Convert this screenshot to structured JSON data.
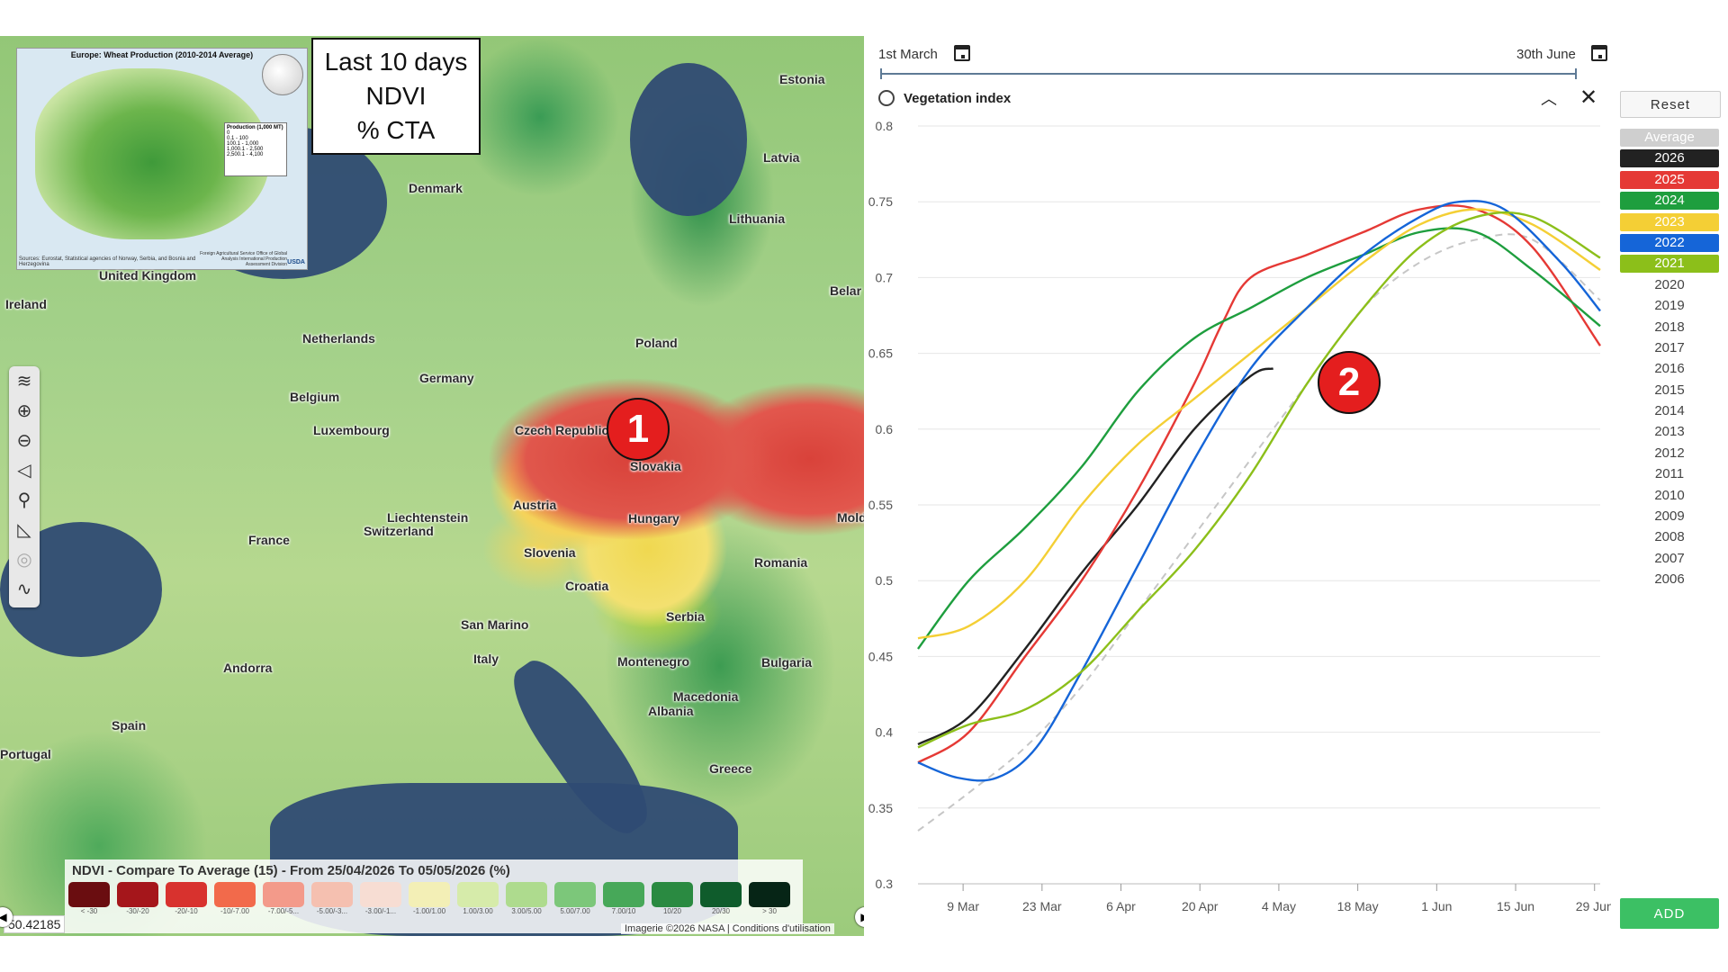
{
  "map": {
    "inset": {
      "title": "Europe: Wheat Production (2010-2014 Average)",
      "legend_title": "Production (1,000 MT)",
      "legend_items": [
        "0",
        "0.1 - 100",
        "100.1 - 1,000",
        "1,000.1 - 2,500",
        "2,500.1 - 4,100"
      ],
      "source": "Sources: Eurostat, Statistical agencies of Norway, Serbia, and Bosnia and Herzegovina",
      "credit": "Foreign Agricultural Service Office of Global Analysis International Production Assessment Division",
      "credit_logo": "USDA"
    },
    "label_box": {
      "line1": "Last 10 days",
      "line2": "NDVI",
      "line3": "% CTA"
    },
    "country_labels": [
      "Estonia",
      "Latvia",
      "Lithuania",
      "Denmark",
      "United Kingdom",
      "Ireland",
      "Netherlands",
      "Belgium",
      "Germany",
      "Poland",
      "Luxembourg",
      "Czech Republic",
      "Slovakia",
      "Austria",
      "Hungary",
      "Liechtenstein",
      "Switzerland",
      "France",
      "Slovenia",
      "Croatia",
      "San Marino",
      "Serbia",
      "Romania",
      "Bulgaria",
      "Montenegro",
      "Macedonia",
      "Albania",
      "Italy",
      "Andorra",
      "Spain",
      "Portugal",
      "Greece",
      "Belar",
      "Mold"
    ],
    "markers": [
      "1",
      "2"
    ],
    "legend": {
      "title": "NDVI - Compare To Average (15) - From 25/04/2026 To 05/05/2026 (%)",
      "swatches": [
        {
          "label": "< -30",
          "color": "#6a0d10"
        },
        {
          "label": "-30/-20",
          "color": "#a5161b"
        },
        {
          "label": "-20/-10",
          "color": "#d8322e"
        },
        {
          "label": "-10/-7.00",
          "color": "#f26a4b"
        },
        {
          "label": "-7.00/-5...",
          "color": "#f39a8a"
        },
        {
          "label": "-5.00/-3...",
          "color": "#f5c0b0"
        },
        {
          "label": "-3.00/-1...",
          "color": "#f7ddd3"
        },
        {
          "label": "-1.00/1.00",
          "color": "#f3efb6"
        },
        {
          "label": "1.00/3.00",
          "color": "#d6ebaa"
        },
        {
          "label": "3.00/5.00",
          "color": "#aedb8e"
        },
        {
          "label": "5.00/7.00",
          "color": "#7cc77a"
        },
        {
          "label": "7.00/10",
          "color": "#47a859"
        },
        {
          "label": "10/20",
          "color": "#2a8a41"
        },
        {
          "label": "20/30",
          "color": "#0f5c2c"
        },
        {
          "label": "> 30",
          "color": "#062516"
        }
      ]
    },
    "coordinates": "50.42185",
    "attribution": "Imagerie ©2026 NASA | Conditions d'utilisation",
    "tools": [
      "layers-icon",
      "zoom-in-icon",
      "zoom-out-icon",
      "navigate-icon",
      "search-icon",
      "measure-icon",
      "target-icon",
      "draw-icon"
    ]
  },
  "panel": {
    "date_start": "1st March",
    "date_end": "30th June",
    "title": "Vegetation index",
    "reset_label": "Reset",
    "add_label": "ADD",
    "years": [
      {
        "label": "Average",
        "color": "#cfcfcf",
        "active": true
      },
      {
        "label": "2026",
        "color": "#222222",
        "active": true
      },
      {
        "label": "2025",
        "color": "#e53935",
        "active": true
      },
      {
        "label": "2024",
        "color": "#1e9e3e",
        "active": true
      },
      {
        "label": "2023",
        "color": "#f4cf35",
        "active": true
      },
      {
        "label": "2022",
        "color": "#1565d8",
        "active": true
      },
      {
        "label": "2021",
        "color": "#8cbf1a",
        "active": true
      },
      {
        "label": "2020",
        "active": false
      },
      {
        "label": "2019",
        "active": false
      },
      {
        "label": "2018",
        "active": false
      },
      {
        "label": "2017",
        "active": false
      },
      {
        "label": "2016",
        "active": false
      },
      {
        "label": "2015",
        "active": false
      },
      {
        "label": "2014",
        "active": false
      },
      {
        "label": "2013",
        "active": false
      },
      {
        "label": "2012",
        "active": false
      },
      {
        "label": "2011",
        "active": false
      },
      {
        "label": "2010",
        "active": false
      },
      {
        "label": "2009",
        "active": false
      },
      {
        "label": "2008",
        "active": false
      },
      {
        "label": "2007",
        "active": false
      },
      {
        "label": "2006",
        "active": false
      }
    ]
  },
  "chart_data": {
    "type": "line",
    "title": "Vegetation index",
    "ylim": [
      0.3,
      0.8
    ],
    "yticks": [
      0.3,
      0.35,
      0.4,
      0.45,
      0.5,
      0.55,
      0.6,
      0.65,
      0.7,
      0.75,
      0.8
    ],
    "ytick_labels": [
      "0.3",
      "0.35",
      "0.4",
      "0.45",
      "0.5",
      "0.55",
      "0.6",
      "0.65",
      "0.7",
      "0.75",
      "0.8"
    ],
    "xlim": [
      1,
      122
    ],
    "xticks": [
      9,
      23,
      37,
      51,
      65,
      79,
      93,
      107,
      121
    ],
    "xtick_labels": [
      "9 Mar",
      "23 Mar",
      "6 Apr",
      "20 Apr",
      "4 May",
      "18 May",
      "1 Jun",
      "15 Jun",
      "29 Jun"
    ],
    "grid": "horizontal",
    "series": [
      {
        "name": "Average",
        "color": "#c6c6c6",
        "dashed": true,
        "x": [
          1,
          10,
          20,
          30,
          40,
          50,
          60,
          70,
          80,
          90,
          100,
          110,
          122
        ],
        "y": [
          0.335,
          0.36,
          0.39,
          0.43,
          0.48,
          0.53,
          0.58,
          0.63,
          0.68,
          0.71,
          0.725,
          0.725,
          0.685
        ]
      },
      {
        "name": "2026",
        "color": "#222222",
        "x": [
          1,
          10,
          20,
          30,
          40,
          50,
          60,
          64
        ],
        "y": [
          0.392,
          0.41,
          0.455,
          0.505,
          0.55,
          0.6,
          0.635,
          0.64
        ]
      },
      {
        "name": "2025",
        "color": "#e53935",
        "x": [
          1,
          10,
          20,
          30,
          40,
          50,
          55,
          60,
          70,
          80,
          90,
          100,
          110,
          122
        ],
        "y": [
          0.38,
          0.4,
          0.45,
          0.5,
          0.56,
          0.63,
          0.67,
          0.7,
          0.715,
          0.73,
          0.745,
          0.745,
          0.72,
          0.655
        ]
      },
      {
        "name": "2024",
        "color": "#1e9e3e",
        "x": [
          1,
          10,
          20,
          30,
          40,
          50,
          60,
          70,
          80,
          90,
          100,
          110,
          122
        ],
        "y": [
          0.455,
          0.5,
          0.535,
          0.575,
          0.625,
          0.66,
          0.68,
          0.7,
          0.715,
          0.73,
          0.73,
          0.705,
          0.668
        ]
      },
      {
        "name": "2023",
        "color": "#f4cf35",
        "x": [
          1,
          10,
          20,
          30,
          40,
          50,
          60,
          70,
          80,
          90,
          100,
          110,
          122
        ],
        "y": [
          0.462,
          0.47,
          0.5,
          0.55,
          0.59,
          0.62,
          0.65,
          0.68,
          0.71,
          0.735,
          0.745,
          0.735,
          0.705
        ]
      },
      {
        "name": "2022",
        "color": "#1565d8",
        "x": [
          1,
          8,
          15,
          22,
          30,
          40,
          50,
          60,
          70,
          80,
          90,
          97,
          105,
          115,
          122
        ],
        "y": [
          0.38,
          0.37,
          0.37,
          0.39,
          0.44,
          0.51,
          0.58,
          0.64,
          0.68,
          0.715,
          0.74,
          0.75,
          0.745,
          0.71,
          0.678
        ]
      },
      {
        "name": "2021",
        "color": "#8cbf1a",
        "x": [
          1,
          10,
          20,
          30,
          40,
          50,
          60,
          70,
          80,
          90,
          100,
          110,
          122
        ],
        "y": [
          0.39,
          0.405,
          0.415,
          0.44,
          0.48,
          0.52,
          0.57,
          0.63,
          0.68,
          0.72,
          0.74,
          0.74,
          0.713
        ]
      }
    ]
  }
}
